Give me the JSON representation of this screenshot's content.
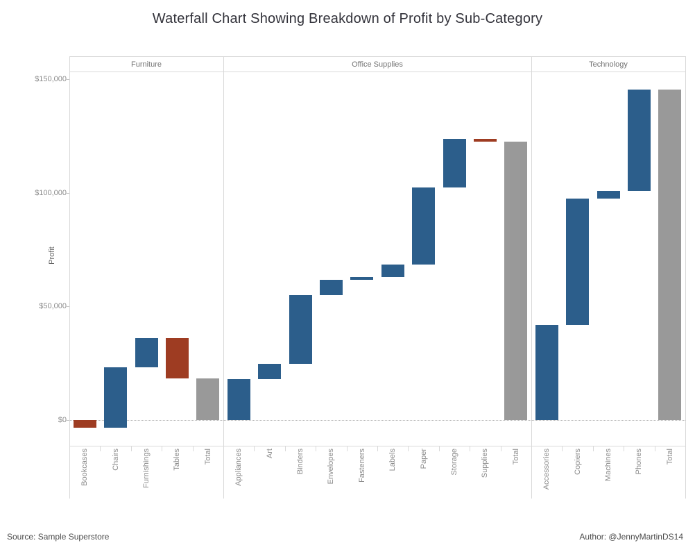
{
  "title": "Waterfall Chart Showing Breakdown of Profit by Sub-Category",
  "footer": {
    "source": "Source: Sample Superstore",
    "author": "Author: @JennyMartinDS14"
  },
  "chart_data": {
    "type": "bar",
    "subtype": "waterfall",
    "title": "Waterfall Chart Showing Breakdown of Profit by Sub-Category",
    "ylabel": "Profit",
    "xlabel": "",
    "ylim": [
      -11300,
      153700
    ],
    "grid": false,
    "zero_line": "dotted",
    "legend_position": "none",
    "y_ticks": [
      {
        "value": 0,
        "label": "$0"
      },
      {
        "value": 50000,
        "label": "$50,000"
      },
      {
        "value": 100000,
        "label": "$100,000"
      },
      {
        "value": 150000,
        "label": "$150,000"
      }
    ],
    "colors": {
      "increase": "#2c5e8b",
      "decrease": "#9e3c22",
      "total": "#999999"
    },
    "panels": [
      {
        "label": "Furniture",
        "items": [
          {
            "label": "Bookcases",
            "type": "delta",
            "value": -3473
          },
          {
            "label": "Chairs",
            "type": "delta",
            "value": 26590
          },
          {
            "label": "Furnishings",
            "type": "delta",
            "value": 13059
          },
          {
            "label": "Tables",
            "type": "delta",
            "value": -17725
          },
          {
            "label": "Total",
            "type": "total",
            "value": 18451
          }
        ]
      },
      {
        "label": "Office Supplies",
        "items": [
          {
            "label": "Appliances",
            "type": "delta",
            "value": 18138
          },
          {
            "label": "Art",
            "type": "delta",
            "value": 6528
          },
          {
            "label": "Binders",
            "type": "delta",
            "value": 30222
          },
          {
            "label": "Envelopes",
            "type": "delta",
            "value": 6964
          },
          {
            "label": "Fasteners",
            "type": "delta",
            "value": 950
          },
          {
            "label": "Labels",
            "type": "delta",
            "value": 5546
          },
          {
            "label": "Paper",
            "type": "delta",
            "value": 34054
          },
          {
            "label": "Storage",
            "type": "delta",
            "value": 21279
          },
          {
            "label": "Supplies",
            "type": "delta",
            "value": -1189
          },
          {
            "label": "Total",
            "type": "total",
            "value": 122491
          }
        ]
      },
      {
        "label": "Technology",
        "items": [
          {
            "label": "Accessories",
            "type": "delta",
            "value": 41937
          },
          {
            "label": "Copiers",
            "type": "delta",
            "value": 55618
          },
          {
            "label": "Machines",
            "type": "delta",
            "value": 3385
          },
          {
            "label": "Phones",
            "type": "delta",
            "value": 44516
          },
          {
            "label": "Total",
            "type": "total",
            "value": 145455
          }
        ]
      }
    ]
  }
}
